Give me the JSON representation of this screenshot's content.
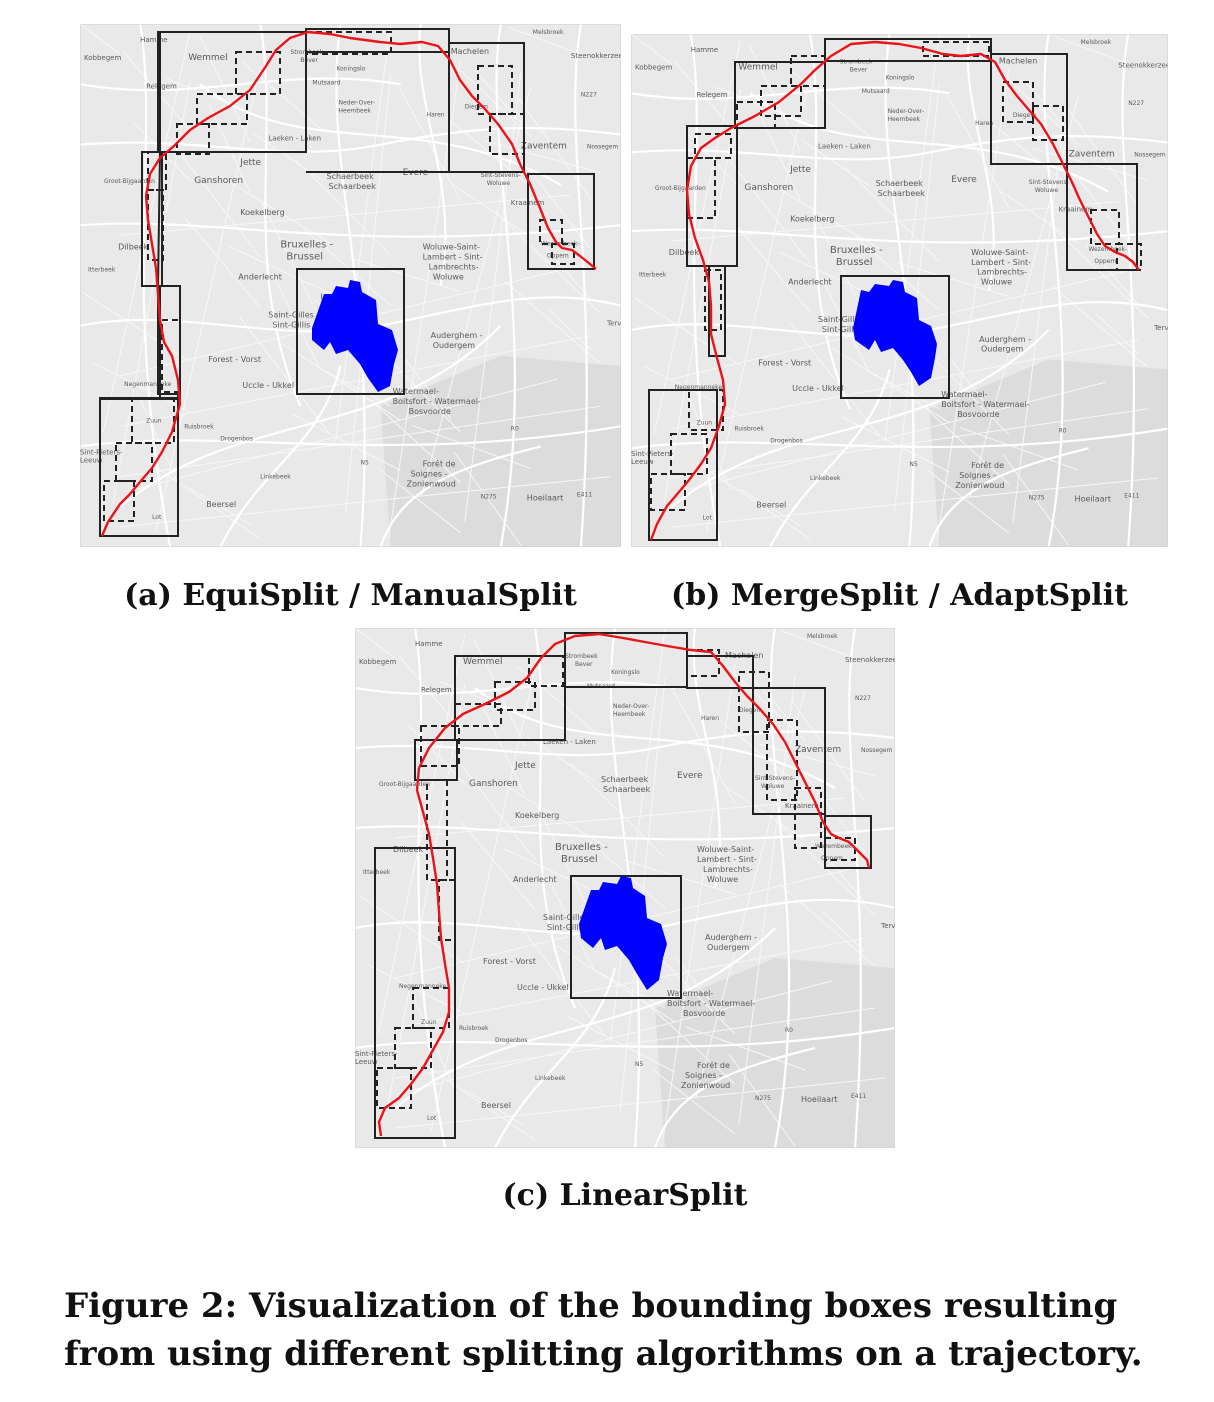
{
  "figure": {
    "caption": "Figure 2: Visualization of the bounding boxes resulting from using different splitting algorithms on a trajectory."
  },
  "panels": [
    {
      "id": "a",
      "caption": "(a) EquiSplit / ManualSplit"
    },
    {
      "id": "b",
      "caption": "(b) MergeSplit / AdaptSplit"
    },
    {
      "id": "c",
      "caption": "(c) LinearSplit"
    }
  ],
  "map": {
    "labels": {
      "hamme": "Hamme",
      "kobbegem": "Kobbegem",
      "wemmel": "Wemmel",
      "relegem": "Relegem",
      "strombeek": "Strombeek",
      "bever": "Bever",
      "koningslo": "Koningslo",
      "mutsaard": "Mutsaard",
      "neder": "Neder-Over-",
      "heembeek": "Heembeek",
      "haren": "Haren",
      "diegem": "Diegem",
      "machelen": "Machelen",
      "melsbroek": "Melsbroek",
      "steenokkerzeel": "Steenokkerzeel",
      "zaventem": "Zaventem",
      "nossegem": "Nossegem",
      "laeken": "Laeken - Laken",
      "jette": "Jette",
      "ganshoren": "Ganshoren",
      "grootbijgaarden": "Groot-Bijgaarden",
      "schaerbeek": "Schaerbeek",
      "schaarbeek": "Schaarbeek",
      "evere": "Evere",
      "sintstevens": "Sint-Stevens-",
      "woluwe": "Woluwe",
      "kraainem": "Kraainem",
      "koekelberg": "Koekelberg",
      "bruxelles": "Bruxelles -",
      "brussel": "Brussel",
      "dilbeek": "Dilbeek",
      "itterbeek": "Itterbeek",
      "anderlecht": "Anderlecht",
      "wolsaint": "Woluwe-Saint-",
      "lambertsint": "Lambert - Sint-",
      "lambrechts": "Lambrechts-",
      "woluwe2": "Woluwe",
      "wezembeek": "Wezembeek-",
      "oppem": "Oppem",
      "ixelles": "Ixelles",
      "saintgilles": "Saint-Gilles -",
      "sintgillis": "Sint-Gillis",
      "tervuren": "Tervuren",
      "auderghem": "Auderghem -",
      "oudergem": "Oudergem",
      "forest": "Forest - Vorst",
      "negenmanneke": "Negenmanneke",
      "uccle": "Uccle - Ukkel",
      "watermael": "Watermael-",
      "boitsfort": "Boitsfort - Watermael-",
      "bosvoorde": "Bosvoorde",
      "ruisbroek": "Ruisbroek",
      "drogenbos": "Drogenbos",
      "zuun": "Zuun",
      "sintpieters": "Sint-Pieters-",
      "leeuw": "Leeuw",
      "linkebeek": "Linkebeek",
      "beersel": "Beersel",
      "lot": "Lot",
      "foret": "Forêt de",
      "soignes": "Soignes -",
      "zonienwoud": "Zonienwoud",
      "hoeilaart": "Hoeilaart",
      "n5": "N5",
      "n275": "N275",
      "e411": "E411",
      "r0": "R0",
      "n227": "N227",
      "bosvoorde2": "Bosvoorde"
    }
  },
  "colors": {
    "trajectory": "#e8141a",
    "query_region": "#0000ff",
    "box_stroke": "#222222",
    "map_bg": "#e9e9e9",
    "road": "#ffffff",
    "forest": "#dcdcdc"
  }
}
